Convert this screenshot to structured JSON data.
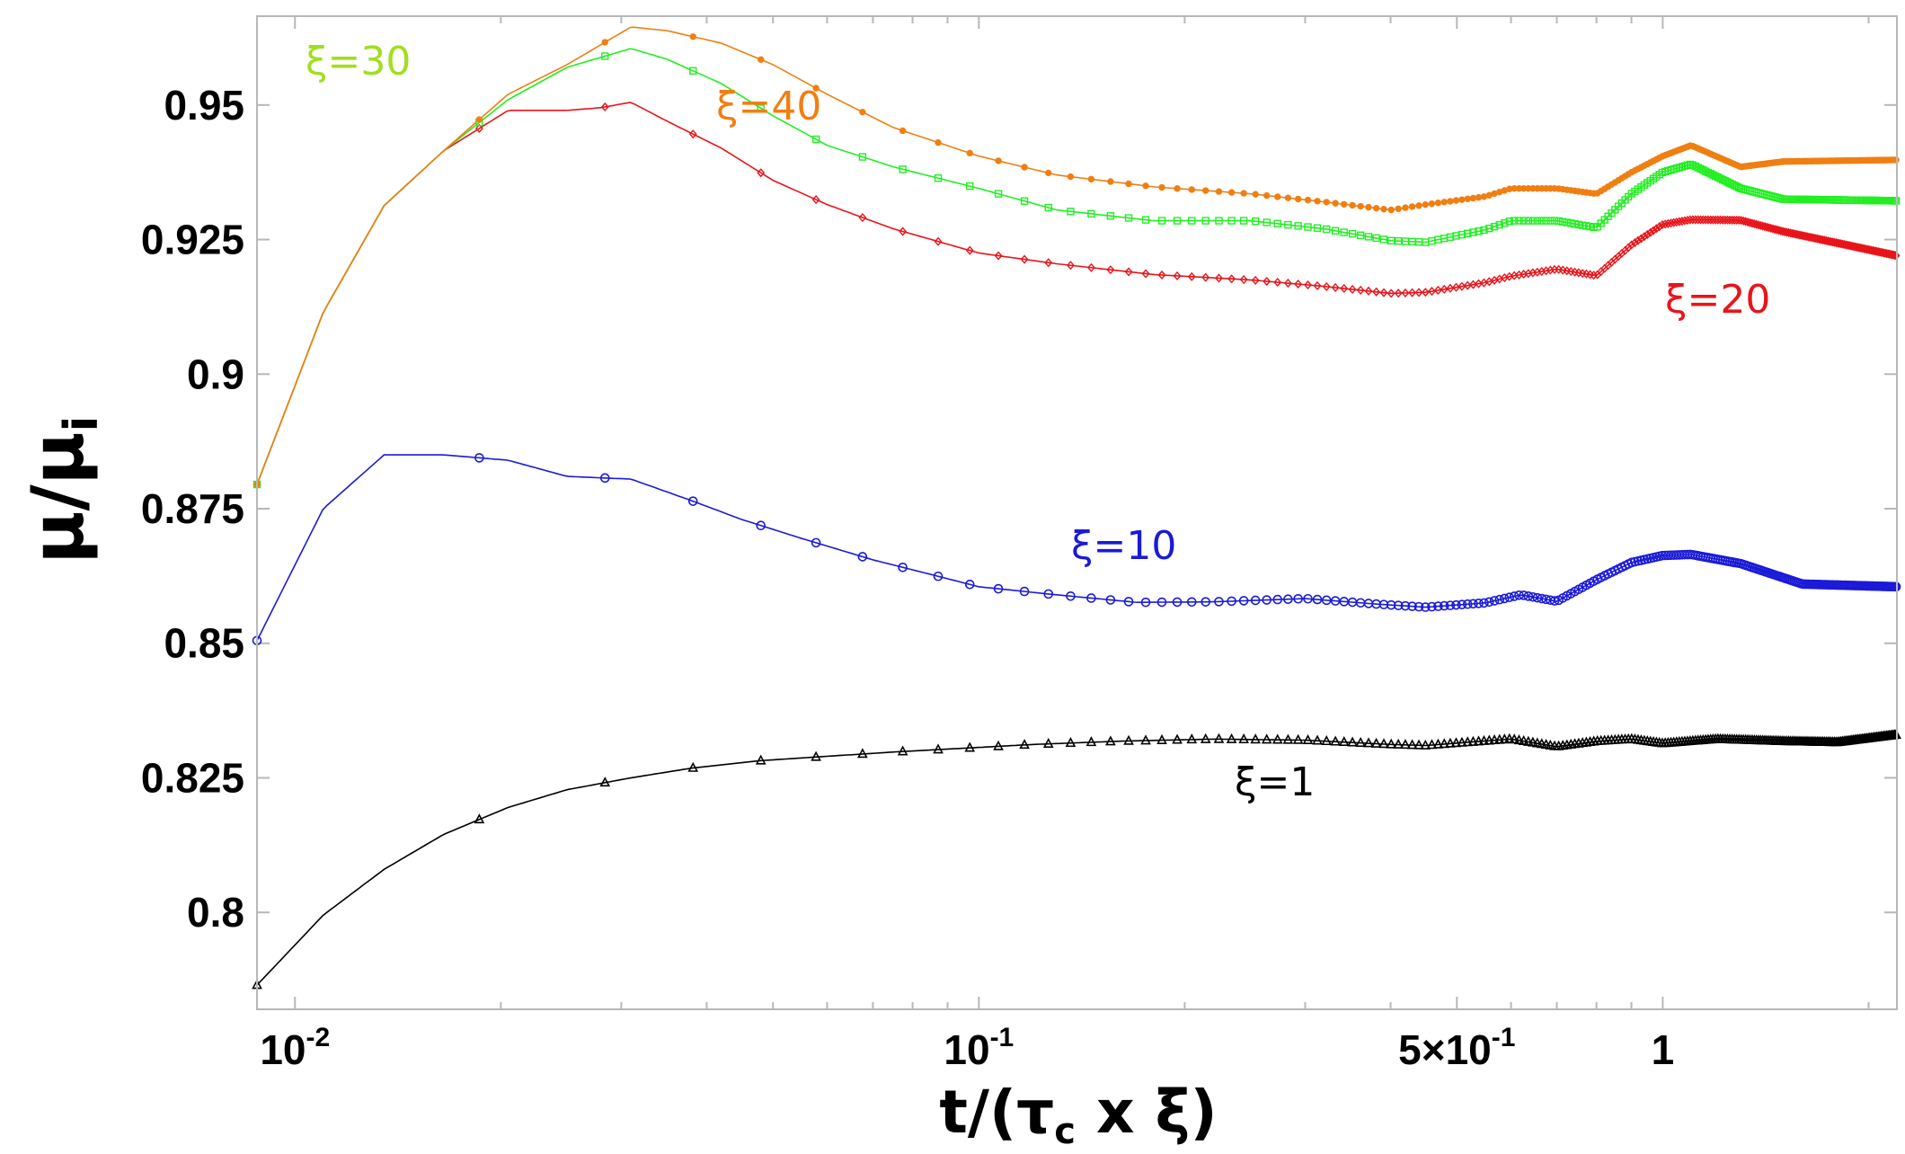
{
  "chart_data": {
    "type": "line",
    "title": "",
    "xlabel": "t/(τ_c x ξ)",
    "ylabel": "μ/μ_i",
    "xscale": "log",
    "xlim": [
      0.0088,
      2.2
    ],
    "ylim": [
      0.782,
      0.9665
    ],
    "grid": false,
    "x_ticks": [
      {
        "value": 0.01,
        "label": "10",
        "sup": "-2"
      },
      {
        "value": 0.1,
        "label": "10",
        "sup": "-1"
      },
      {
        "value": 0.5,
        "label": "5×10",
        "sup": "-1"
      },
      {
        "value": 1,
        "label": "1",
        "sup": ""
      }
    ],
    "x_minor_ticks": [
      0.02,
      0.03,
      0.04,
      0.05,
      0.06,
      0.07,
      0.08,
      0.09,
      0.2,
      0.3,
      0.4,
      0.6,
      0.7,
      0.8,
      0.9,
      2
    ],
    "y_ticks": [
      {
        "value": 0.8,
        "label": "0.8"
      },
      {
        "value": 0.825,
        "label": "0.825"
      },
      {
        "value": 0.85,
        "label": "0.85"
      },
      {
        "value": 0.875,
        "label": "0.875"
      },
      {
        "value": 0.9,
        "label": "0.9"
      },
      {
        "value": 0.925,
        "label": "0.925"
      },
      {
        "value": 0.95,
        "label": "0.95"
      }
    ],
    "series": [
      {
        "name": "ξ=1",
        "label": "ξ=1",
        "color": "#000000",
        "marker": "triangle",
        "x": [
          0.0088,
          0.011,
          0.0135,
          0.0165,
          0.0205,
          0.025,
          0.031,
          0.038,
          0.048,
          0.06,
          0.075,
          0.095,
          0.12,
          0.16,
          0.22,
          0.3,
          0.4,
          0.45,
          0.6,
          0.7,
          0.8,
          0.9,
          1.0,
          1.2,
          1.5,
          1.8,
          2.2
        ],
        "y": [
          0.7865,
          0.7995,
          0.808,
          0.8145,
          0.8195,
          0.8228,
          0.825,
          0.8268,
          0.8282,
          0.829,
          0.8298,
          0.8305,
          0.8312,
          0.8318,
          0.8322,
          0.832,
          0.8312,
          0.831,
          0.8322,
          0.8308,
          0.8318,
          0.8322,
          0.8314,
          0.8322,
          0.8318,
          0.8316,
          0.833
        ]
      },
      {
        "name": "ξ=10",
        "label": "ξ=10",
        "color": "#1a1ad8",
        "marker": "circle",
        "x": [
          0.0088,
          0.011,
          0.0135,
          0.0165,
          0.0205,
          0.025,
          0.031,
          0.038,
          0.045,
          0.055,
          0.07,
          0.085,
          0.1,
          0.13,
          0.17,
          0.22,
          0.3,
          0.38,
          0.45,
          0.55,
          0.62,
          0.7,
          0.8,
          0.9,
          1.0,
          1.1,
          1.3,
          1.6,
          2.2
        ],
        "y": [
          0.8505,
          0.875,
          0.885,
          0.885,
          0.884,
          0.881,
          0.8805,
          0.8765,
          0.873,
          0.8695,
          0.8655,
          0.8628,
          0.8605,
          0.859,
          0.8576,
          0.8577,
          0.8583,
          0.8573,
          0.8567,
          0.8575,
          0.859,
          0.8578,
          0.8618,
          0.865,
          0.8663,
          0.8665,
          0.8648,
          0.861,
          0.8605
        ]
      },
      {
        "name": "ξ=20",
        "label": "ξ=20",
        "color": "#e8141a",
        "marker": "diamond",
        "x": [
          0.0088,
          0.011,
          0.0135,
          0.0165,
          0.0205,
          0.025,
          0.028,
          0.031,
          0.035,
          0.042,
          0.05,
          0.06,
          0.075,
          0.1,
          0.13,
          0.18,
          0.25,
          0.32,
          0.4,
          0.45,
          0.55,
          0.6,
          0.7,
          0.8,
          0.9,
          1.0,
          1.1,
          1.3,
          1.5,
          2.2
        ],
        "y": [
          0.8795,
          0.9115,
          0.9313,
          0.9415,
          0.949,
          0.949,
          0.9495,
          0.9505,
          0.947,
          0.942,
          0.936,
          0.9315,
          0.927,
          0.9225,
          0.9205,
          0.9185,
          0.9175,
          0.9163,
          0.915,
          0.9152,
          0.917,
          0.9182,
          0.9195,
          0.9183,
          0.924,
          0.9278,
          0.9287,
          0.9286,
          0.9265,
          0.922
        ]
      },
      {
        "name": "ξ=30",
        "label": "ξ=30",
        "color": "#22ee22",
        "label_color": "#a2de1e",
        "marker": "square",
        "x": [
          0.0088,
          0.011,
          0.0135,
          0.0165,
          0.0205,
          0.025,
          0.031,
          0.035,
          0.042,
          0.05,
          0.06,
          0.075,
          0.1,
          0.13,
          0.18,
          0.25,
          0.32,
          0.4,
          0.45,
          0.55,
          0.6,
          0.7,
          0.8,
          0.9,
          1.0,
          1.1,
          1.3,
          1.5,
          2.2
        ],
        "y": [
          0.8795,
          0.9115,
          0.9313,
          0.9415,
          0.951,
          0.957,
          0.9605,
          0.9585,
          0.954,
          0.948,
          0.9425,
          0.9385,
          0.9345,
          0.9305,
          0.9285,
          0.9285,
          0.927,
          0.9248,
          0.9245,
          0.9268,
          0.9285,
          0.9285,
          0.9272,
          0.9335,
          0.9375,
          0.939,
          0.9345,
          0.9325,
          0.9322
        ]
      },
      {
        "name": "ξ=40",
        "label": "ξ=40",
        "color": "#f07f12",
        "marker": "dot",
        "x": [
          0.0088,
          0.011,
          0.0135,
          0.0165,
          0.0205,
          0.025,
          0.031,
          0.035,
          0.042,
          0.05,
          0.06,
          0.075,
          0.1,
          0.13,
          0.18,
          0.25,
          0.32,
          0.4,
          0.45,
          0.55,
          0.6,
          0.7,
          0.8,
          0.9,
          1.0,
          1.1,
          1.3,
          1.5,
          2.2
        ],
        "y": [
          0.8795,
          0.9115,
          0.9313,
          0.9415,
          0.952,
          0.9575,
          0.9645,
          0.9638,
          0.9615,
          0.9575,
          0.952,
          0.9458,
          0.9405,
          0.937,
          0.9348,
          0.9335,
          0.932,
          0.9305,
          0.9315,
          0.933,
          0.9345,
          0.9345,
          0.9335,
          0.9375,
          0.9405,
          0.9425,
          0.9385,
          0.9395,
          0.9398
        ]
      }
    ]
  }
}
